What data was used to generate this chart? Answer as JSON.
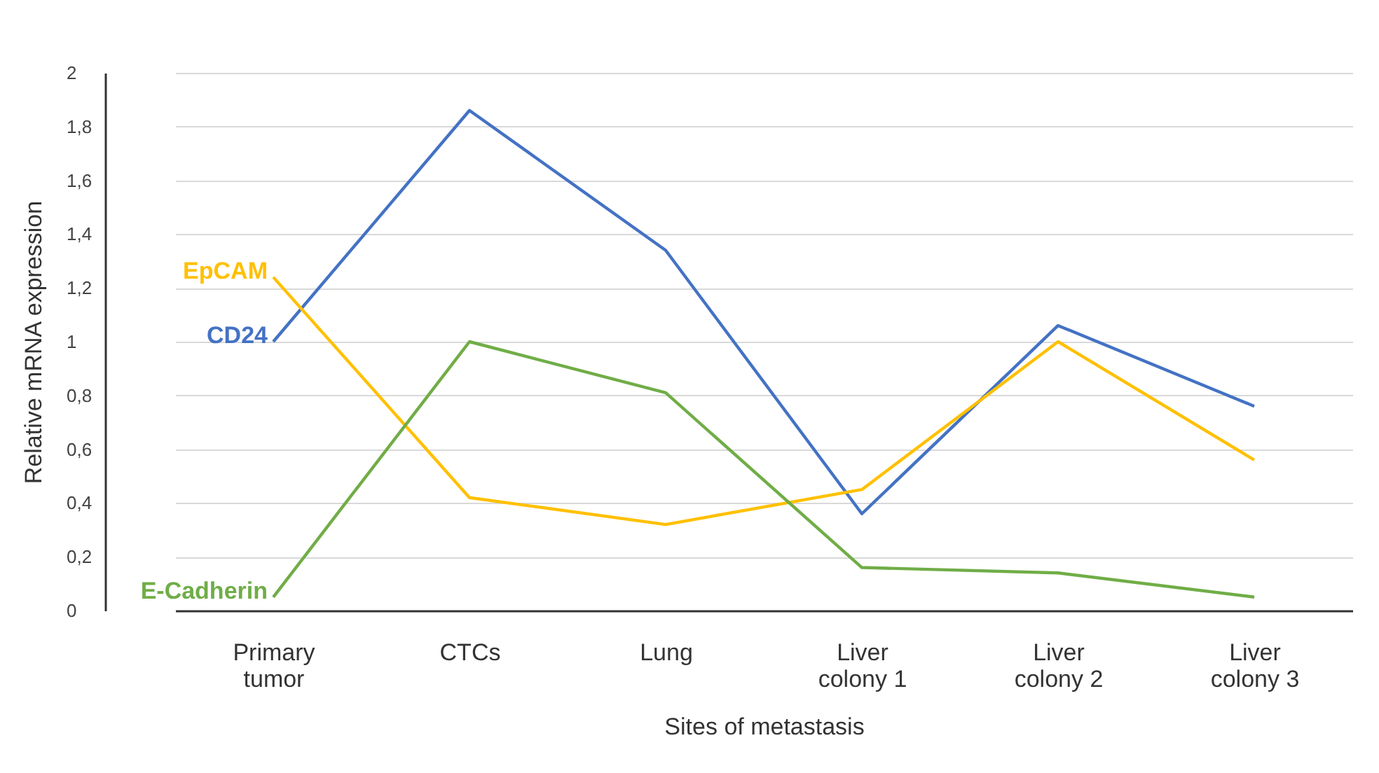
{
  "chart_data": {
    "type": "line",
    "xlabel": "Sites of metastasis",
    "ylabel": "Relative mRNA expression",
    "categories": [
      "Primary tumor",
      "CTCs",
      "Lung",
      "Liver colony 1",
      "Liver colony 2",
      "Liver colony 3"
    ],
    "series": [
      {
        "name": "CD24",
        "color": "#4472c4",
        "values": [
          1.0,
          1.86,
          1.34,
          0.36,
          1.06,
          0.76
        ]
      },
      {
        "name": "EpCAM",
        "color": "#ffc000",
        "values": [
          1.24,
          0.42,
          0.32,
          0.45,
          1.0,
          0.56
        ]
      },
      {
        "name": "E-Cadherin",
        "color": "#70ad47",
        "values": [
          0.05,
          1.0,
          0.81,
          0.16,
          0.14,
          0.05
        ]
      }
    ],
    "ylim": [
      0,
      2
    ],
    "yticks": [
      {
        "value": 0,
        "label": "0"
      },
      {
        "value": 0.2,
        "label": "0,2"
      },
      {
        "value": 0.4,
        "label": "0,4"
      },
      {
        "value": 0.6,
        "label": "0,6"
      },
      {
        "value": 0.8,
        "label": "0,8"
      },
      {
        "value": 1,
        "label": "1"
      },
      {
        "value": 1.2,
        "label": "1,2"
      },
      {
        "value": 1.4,
        "label": "1,4"
      },
      {
        "value": 1.6,
        "label": "1,6"
      },
      {
        "value": 1.8,
        "label": "1,8"
      },
      {
        "value": 2,
        "label": "2"
      }
    ],
    "grid": "y",
    "marker": "none",
    "line_style": "solid"
  }
}
